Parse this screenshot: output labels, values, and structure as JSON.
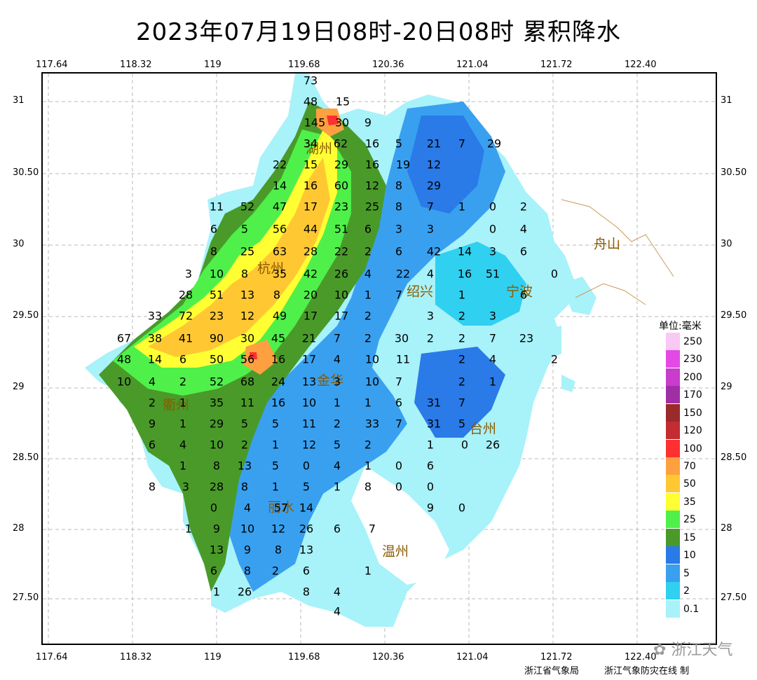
{
  "title": "2023年07月19日08时-20日08时  累积降水",
  "lon_ticks": [
    "117.64",
    "118.32",
    "119",
    "119.68",
    "120.36",
    "121.04",
    "121.72",
    "122.40"
  ],
  "lat_ticks": [
    "31",
    "30.50",
    "30",
    "29.50",
    "29",
    "28.50",
    "28",
    "27.50"
  ],
  "legend": {
    "title": "单位:毫米",
    "items": [
      {
        "label": "250",
        "color": "#f9c9f6"
      },
      {
        "label": "230",
        "color": "#e34ae5"
      },
      {
        "label": "200",
        "color": "#c93ccc"
      },
      {
        "label": "170",
        "color": "#a02fa6"
      },
      {
        "label": "150",
        "color": "#9b2a2a"
      },
      {
        "label": "120",
        "color": "#c22c32"
      },
      {
        "label": "100",
        "color": "#ff3030"
      },
      {
        "label": "70",
        "color": "#ffa040"
      },
      {
        "label": "50",
        "color": "#ffc833"
      },
      {
        "label": "35",
        "color": "#ffff33"
      },
      {
        "label": "25",
        "color": "#4ff04a"
      },
      {
        "label": "15",
        "color": "#4a9a2a"
      },
      {
        "label": "10",
        "color": "#2a7ae8"
      },
      {
        "label": "5",
        "color": "#39a0f0"
      },
      {
        "label": "2",
        "color": "#30d0f0"
      },
      {
        "label": "0.1",
        "color": "#a8f2fa"
      }
    ]
  },
  "cities": [
    "湖州",
    "杭州",
    "绍兴",
    "宁波",
    "舟山",
    "衢州",
    "金华",
    "台州",
    "丽水",
    "温州"
  ],
  "stations": [
    "73",
    "48",
    "15",
    "145",
    "30",
    "9",
    "34",
    "62",
    "16",
    "5",
    "21",
    "7",
    "29",
    "22",
    "15",
    "29",
    "16",
    "19",
    "12",
    "14",
    "16",
    "60",
    "12",
    "8",
    "29",
    "11",
    "52",
    "47",
    "17",
    "23",
    "25",
    "8",
    "7",
    "1",
    "0",
    "2",
    "6",
    "5",
    "56",
    "44",
    "51",
    "6",
    "3",
    "3",
    "0",
    "4",
    "8",
    "25",
    "63",
    "28",
    "22",
    "2",
    "6",
    "42",
    "14",
    "3",
    "6",
    "3",
    "10",
    "8",
    "35",
    "42",
    "26",
    "4",
    "22",
    "4",
    "16",
    "51",
    "0",
    "28",
    "51",
    "13",
    "8",
    "20",
    "10",
    "1",
    "7",
    "1",
    "6",
    "33",
    "72",
    "23",
    "12",
    "49",
    "17",
    "17",
    "2",
    "3",
    "2",
    "3",
    "67",
    "38",
    "41",
    "90",
    "30",
    "45",
    "21",
    "7",
    "2",
    "30",
    "2",
    "2",
    "7",
    "23",
    "48",
    "14",
    "6",
    "50",
    "56",
    "16",
    "17",
    "4",
    "10",
    "11",
    "2",
    "4",
    "2",
    "10",
    "4",
    "2",
    "52",
    "68",
    "24",
    "13",
    "3",
    "10",
    "7",
    "2",
    "1",
    "2",
    "1",
    "35",
    "11",
    "16",
    "10",
    "1",
    "1",
    "6",
    "31",
    "7",
    "9",
    "1",
    "29",
    "5",
    "5",
    "11",
    "2",
    "33",
    "7",
    "31",
    "5",
    "6",
    "4",
    "10",
    "2",
    "1",
    "12",
    "5",
    "2",
    "1",
    "0",
    "26",
    "1",
    "8",
    "13",
    "5",
    "0",
    "4",
    "1",
    "0",
    "6",
    "8",
    "3",
    "28",
    "8",
    "1",
    "5",
    "1",
    "8",
    "0",
    "0",
    "0",
    "4",
    "57",
    "14",
    "9",
    "0",
    "1",
    "9",
    "10",
    "12",
    "26",
    "6",
    "7",
    "13",
    "9",
    "8",
    "13",
    "6",
    "8",
    "2",
    "6",
    "1",
    "1",
    "26",
    "8",
    "4",
    "4",
    "9"
  ],
  "credit_left": "浙江省气象局",
  "credit_right": "浙江气象防灾在线 制",
  "watermark": "浙江天气"
}
